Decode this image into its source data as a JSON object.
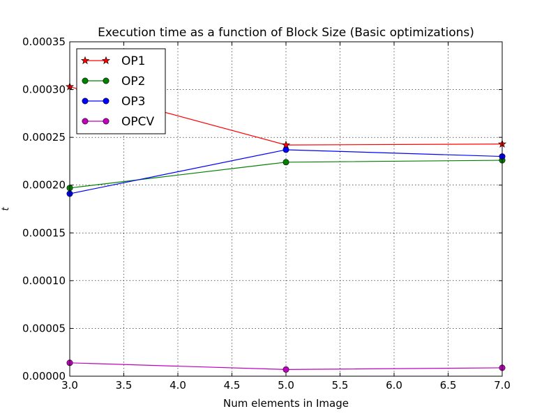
{
  "chart_data": {
    "type": "line",
    "title": "Execution time as a function of Block Size (Basic optimizations)",
    "xlabel": "Num elements in Image",
    "ylabel": "t",
    "xlim": [
      3.0,
      7.0
    ],
    "ylim": [
      0.0,
      0.00035
    ],
    "x_ticks": [
      "3.0",
      "3.5",
      "4.0",
      "4.5",
      "5.0",
      "5.5",
      "6.0",
      "6.5",
      "7.0"
    ],
    "y_ticks": [
      "0.00000",
      "0.00005",
      "0.00010",
      "0.00015",
      "0.00020",
      "0.00025",
      "0.00030",
      "0.00035"
    ],
    "grid": true,
    "legend_position": "top-left",
    "x": [
      3,
      5,
      7
    ],
    "series": [
      {
        "name": "OP1",
        "values": [
          0.000303,
          0.000242,
          0.000243
        ],
        "color": "#ff0000",
        "marker": "star"
      },
      {
        "name": "OP2",
        "values": [
          0.000197,
          0.000224,
          0.000226
        ],
        "color": "#008000",
        "marker": "circle"
      },
      {
        "name": "OP3",
        "values": [
          0.000191,
          0.000237,
          0.00023
        ],
        "color": "#0000ff",
        "marker": "circle"
      },
      {
        "name": "OPCV",
        "values": [
          1.4e-05,
          7e-06,
          8.8e-06
        ],
        "color": "#bf00bf",
        "marker": "circle"
      }
    ]
  }
}
